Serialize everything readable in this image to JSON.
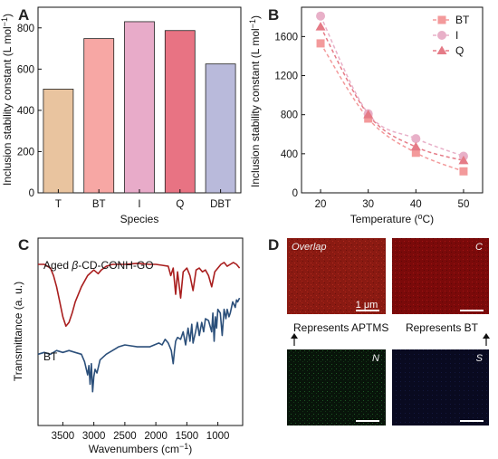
{
  "panels": {
    "A": "A",
    "B": "B",
    "C": "C",
    "D": "D"
  },
  "chart_data": [
    {
      "type": "bar",
      "panel": "A",
      "categories": [
        "T",
        "BT",
        "I",
        "Q",
        "DBT"
      ],
      "values": [
        503,
        748,
        830,
        787,
        625
      ],
      "colors": [
        "#e9c49f",
        "#f7a7a4",
        "#e8abc9",
        "#e87383",
        "#b9badb"
      ],
      "xlabel": "Species",
      "ylabel": "Inclusion stability constant (L mol⁻¹)",
      "ylim": [
        0,
        900
      ],
      "yticks": [
        0,
        200,
        400,
        600,
        800
      ]
    },
    {
      "type": "scatter",
      "panel": "B",
      "x": [
        20,
        30,
        40,
        50
      ],
      "series": [
        {
          "name": "BT",
          "marker": "square",
          "values": [
            1530,
            760,
            410,
            220
          ],
          "color": "#f39a9b"
        },
        {
          "name": "I",
          "marker": "circle",
          "values": [
            1810,
            810,
            555,
            375
          ],
          "color": "#e8b0c8"
        },
        {
          "name": "Q",
          "marker": "triangle",
          "values": [
            1700,
            800,
            470,
            330
          ],
          "color": "#e57b87"
        }
      ],
      "xlabel": "Temperature (°C)",
      "ylabel": "Inclusion stability constant (L mol⁻¹)",
      "xlim": [
        16,
        54
      ],
      "ylim": [
        0,
        1900
      ],
      "xticks": [
        20,
        30,
        40,
        50
      ],
      "yticks": [
        0,
        400,
        800,
        1200,
        1600
      ],
      "legend": "top-right",
      "fit_lines": "dashed"
    },
    {
      "type": "line",
      "panel": "C",
      "xlabel": "Wavenumbers (cm⁻¹)",
      "ylabel": "Transmittance (a. u.)",
      "xlim": [
        3900,
        600
      ],
      "xticks": [
        3500,
        3000,
        2500,
        2000,
        1500,
        1000
      ],
      "series": [
        {
          "name": "Aged β-CD-CONH-GO",
          "color": "#a91e1e",
          "x": [
            3900,
            3800,
            3700,
            3650,
            3600,
            3550,
            3500,
            3450,
            3400,
            3350,
            3300,
            3200,
            3100,
            3000,
            2930,
            2880,
            2800,
            2700,
            2500,
            2300,
            2100,
            2000,
            1900,
            1800,
            1760,
            1720,
            1680,
            1650,
            1600,
            1560,
            1500,
            1450,
            1400,
            1350,
            1300,
            1250,
            1200,
            1150,
            1100,
            1050,
            1000,
            950,
            900,
            850,
            800,
            750,
            700,
            650
          ],
          "y": [
            0.86,
            0.86,
            0.84,
            0.8,
            0.74,
            0.66,
            0.58,
            0.53,
            0.55,
            0.6,
            0.66,
            0.74,
            0.8,
            0.83,
            0.81,
            0.83,
            0.85,
            0.86,
            0.86,
            0.865,
            0.86,
            0.86,
            0.855,
            0.85,
            0.8,
            0.84,
            0.7,
            0.82,
            0.68,
            0.82,
            0.84,
            0.8,
            0.72,
            0.83,
            0.84,
            0.82,
            0.83,
            0.8,
            0.74,
            0.82,
            0.84,
            0.86,
            0.87,
            0.85,
            0.86,
            0.87,
            0.86,
            0.84
          ]
        },
        {
          "name": "BT",
          "color": "#2b4f7a",
          "x": [
            3900,
            3800,
            3700,
            3600,
            3500,
            3400,
            3300,
            3200,
            3150,
            3100,
            3080,
            3060,
            3040,
            3020,
            3000,
            2980,
            2950,
            2900,
            2800,
            2700,
            2600,
            2500,
            2300,
            2100,
            1950,
            1900,
            1850,
            1800,
            1750,
            1720,
            1700,
            1680,
            1650,
            1600,
            1560,
            1520,
            1480,
            1450,
            1420,
            1400,
            1360,
            1330,
            1300,
            1260,
            1230,
            1200,
            1150,
            1100,
            1080,
            1060,
            1040,
            1020,
            1000,
            960,
            930,
            900,
            870,
            850,
            820,
            800,
            760,
            720,
            700,
            680,
            650
          ],
          "y": [
            0.38,
            0.39,
            0.38,
            0.4,
            0.39,
            0.4,
            0.39,
            0.38,
            0.34,
            0.27,
            0.32,
            0.22,
            0.33,
            0.18,
            0.26,
            0.3,
            0.28,
            0.35,
            0.38,
            0.4,
            0.42,
            0.43,
            0.42,
            0.42,
            0.44,
            0.43,
            0.46,
            0.44,
            0.4,
            0.33,
            0.4,
            0.45,
            0.47,
            0.46,
            0.5,
            0.43,
            0.52,
            0.45,
            0.54,
            0.44,
            0.5,
            0.55,
            0.48,
            0.55,
            0.5,
            0.57,
            0.56,
            0.5,
            0.6,
            0.45,
            0.58,
            0.52,
            0.62,
            0.6,
            0.48,
            0.62,
            0.57,
            0.62,
            0.58,
            0.6,
            0.66,
            0.63,
            0.67,
            0.66,
            0.68
          ]
        }
      ]
    }
  ],
  "panel_c": {
    "label_aged_prefix": "Aged ",
    "label_aged_beta": "β",
    "label_aged_suffix": "-CD-CONH-GO",
    "label_bt": "BT"
  },
  "panel_d": {
    "images": [
      {
        "label": "Overlap",
        "color": "#8d1c12"
      },
      {
        "label": "C",
        "color": "#7e0b0b"
      },
      {
        "label": "N",
        "color": "#0b1f0f"
      },
      {
        "label": "S",
        "color": "#0b0c24"
      }
    ],
    "scale_bar_label": "1 μm",
    "represents_left": "Represents APTMS",
    "represents_right": "Represents BT"
  }
}
